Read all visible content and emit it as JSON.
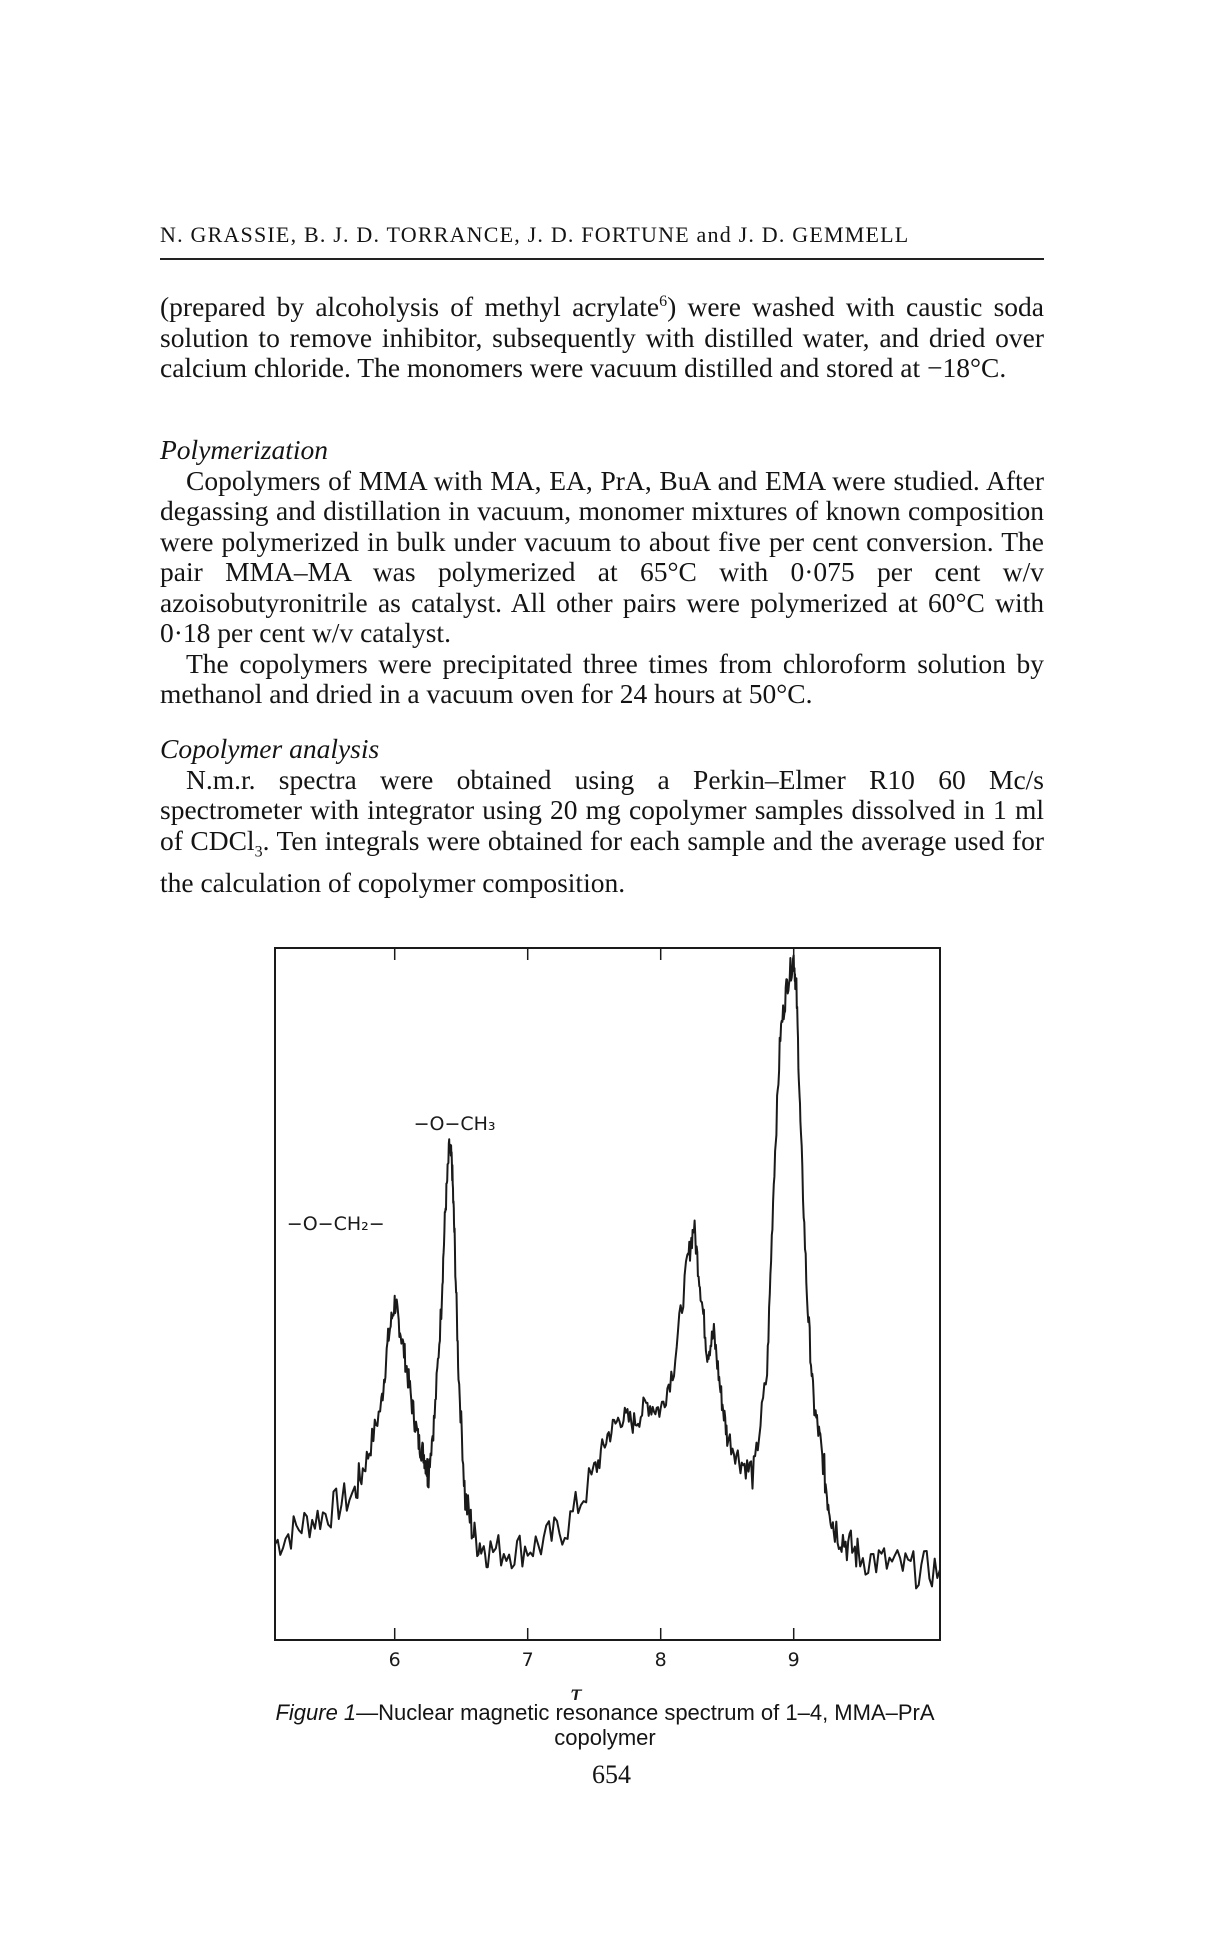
{
  "header": {
    "running_head": "N. GRASSIE, B. J. D. TORRANCE, J. D. FORTUNE and J. D. GEMMELL"
  },
  "body": {
    "para1": {
      "text_before_ref": "(prepared by alcoholysis of methyl acrylate",
      "ref": "6",
      "text_after_ref": ") were washed with caustic soda solution to remove inhibitor, subsequently with distilled water, and dried over calcium chloride. The monomers were vacuum distilled and stored at −18°C."
    },
    "polymerization": {
      "heading": "Polymerization",
      "p1": "Copolymers of MMA with MA, EA, PrA, BuA and EMA were studied. After degassing and distillation in vacuum, monomer mixtures of known composition were polymerized in bulk under vacuum to about five per cent conversion. The pair MMA–MA was polymerized at 65°C with 0·075 per cent w/v azoisobutyronitrile as catalyst. All other pairs were polymerized at 60°C with 0·18 per cent w/v catalyst.",
      "p2": "The copolymers were precipitated three times from chloroform solution by methanol and dried in a vacuum oven for 24 hours at 50°C."
    },
    "copolymer_analysis": {
      "heading": "Copolymer analysis",
      "p1_before_sub": "N.m.r. spectra were obtained using a Perkin–Elmer R10 60 Mc/s spectrometer with integrator using 20 mg copolymer samples dissolved in 1 ml of CDCl",
      "p1_sub": "3",
      "p1_after_sub": ". Ten integrals were obtained for each sample and the average used for the calculation of copolymer composition."
    }
  },
  "figure": {
    "caption_label": "Figure 1",
    "caption_text": "—Nuclear magnetic resonance spectrum of 1–4, MMA–PrA copolymer"
  },
  "chart_data": {
    "type": "line",
    "title": "",
    "xlabel": "τ",
    "ylabel": "",
    "x_ticks": [
      "6",
      "7",
      "8",
      "9"
    ],
    "xlim": [
      5.1,
      10.1
    ],
    "ylim": [
      0,
      100
    ],
    "annotations": [
      {
        "text": "−O−CH₃",
        "x": 6.45
      },
      {
        "text": "−O−CH₂−",
        "x": 6.0
      }
    ],
    "series": [
      {
        "x": [
          5.1,
          5.3,
          5.5,
          5.7,
          5.8,
          5.9,
          5.95,
          6.0,
          6.03,
          6.08,
          6.13,
          6.18,
          6.22,
          6.25,
          6.3,
          6.35,
          6.38,
          6.41,
          6.43,
          6.45,
          6.48,
          6.53,
          6.6,
          6.7,
          6.9,
          7.1,
          7.3,
          7.5,
          7.6,
          7.7,
          7.8,
          7.9,
          8.0,
          8.1,
          8.2,
          8.25,
          8.3,
          8.35,
          8.4,
          8.45,
          8.5,
          8.6,
          8.7,
          8.8,
          8.85,
          8.9,
          8.95,
          9.0,
          9.02,
          9.05,
          9.1,
          9.15,
          9.2,
          9.25,
          9.3,
          9.4,
          9.5,
          9.7,
          9.9,
          10.1
        ],
        "values": [
          8,
          11,
          13,
          16,
          22,
          30,
          40,
          46,
          43,
          37,
          30,
          24,
          22,
          19,
          28,
          45,
          60,
          70,
          68,
          56,
          35,
          15,
          9,
          7,
          7,
          8,
          11,
          19,
          25,
          28,
          27,
          30,
          29,
          36,
          52,
          58,
          48,
          38,
          41,
          32,
          25,
          21,
          19,
          35,
          65,
          88,
          96,
          100,
          95,
          74,
          47,
          30,
          24,
          16,
          11,
          8,
          6,
          5,
          4,
          4
        ]
      }
    ]
  }
}
